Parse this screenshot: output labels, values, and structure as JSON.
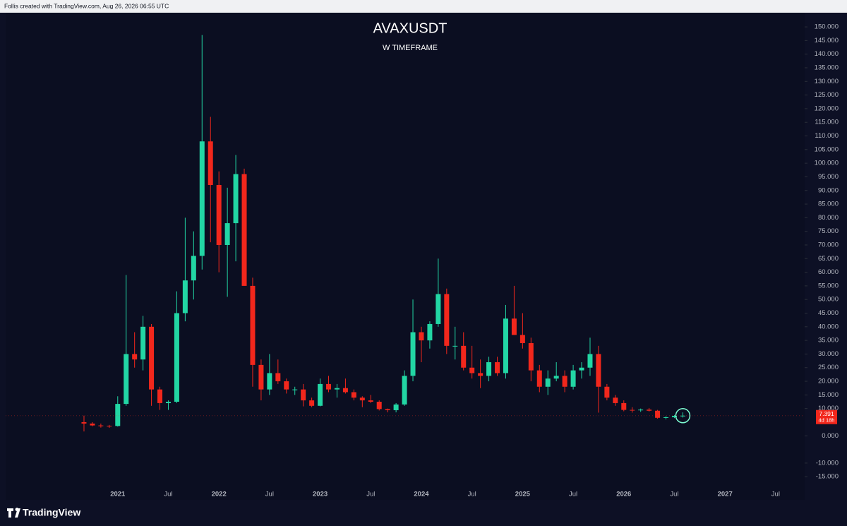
{
  "header": "Follis created with TradingView.com, Aug 26, 2026 06:55 UTC",
  "brand": "TradingView",
  "chart_data": {
    "type": "candlestick",
    "title": "AVAXUSDT",
    "subtitle": "W TIMEFRAME",
    "categories": [
      null,
      null,
      null,
      null,
      "2021",
      null,
      null,
      null,
      null,
      null,
      "Jul",
      null,
      null,
      null,
      null,
      null,
      "2022",
      null,
      null,
      null,
      null,
      null,
      "Jul",
      null,
      null,
      null,
      null,
      null,
      "2023",
      null,
      null,
      null,
      null,
      null,
      "Jul",
      null,
      null,
      null,
      null,
      null,
      "2024",
      null,
      null,
      null,
      null,
      null,
      "Jul",
      null,
      null,
      null,
      null,
      null,
      "2025",
      null,
      null,
      null,
      null,
      null,
      "Jul",
      null,
      null,
      null,
      null,
      null,
      "2026",
      null,
      null,
      null,
      null,
      null,
      "Jul",
      null,
      null,
      null,
      null,
      null,
      "2027",
      null,
      null,
      null,
      null,
      null,
      "Jul",
      null,
      null
    ],
    "open": [
      5,
      4.5,
      3.8,
      3.7,
      3.6,
      11.7,
      30,
      28,
      40,
      17,
      12,
      12.5,
      45,
      57,
      66,
      108,
      92,
      70,
      78,
      96,
      55,
      26,
      17,
      23,
      20,
      17,
      17,
      13,
      11,
      19,
      17,
      17.5,
      16,
      14,
      13,
      12.5,
      9.8,
      9.4,
      11.5,
      22,
      38,
      35,
      41,
      52,
      33,
      33,
      25,
      23,
      22,
      27,
      23,
      43,
      37,
      34,
      24,
      18,
      21,
      22,
      18,
      24,
      25,
      30,
      18,
      14,
      12,
      9.5,
      9.4,
      9.6,
      9.2,
      6.6,
      6.8,
      7.3,
      null,
      null,
      null,
      null,
      null,
      null,
      null,
      null,
      null,
      null,
      null,
      null,
      null
    ],
    "high": [
      7.4,
      5,
      4.5,
      4,
      14.5,
      59,
      38,
      44,
      41,
      18,
      13,
      53,
      80,
      75,
      147,
      117,
      97,
      91,
      103,
      98,
      58,
      28,
      30,
      28,
      21,
      18,
      19,
      14,
      21,
      22,
      19,
      21,
      17,
      14.5,
      15,
      13,
      10,
      12,
      24,
      50,
      40,
      42,
      65,
      54,
      40,
      38,
      33,
      28,
      29,
      29,
      48,
      55,
      45,
      36,
      26,
      24,
      27,
      24,
      26,
      27,
      36,
      33,
      19,
      15,
      13,
      10.5,
      10,
      10.2,
      9.5,
      7.2,
      7.6,
      8.6,
      null,
      null,
      null,
      null,
      null,
      null,
      null,
      null,
      null,
      null,
      null,
      null,
      null
    ],
    "low": [
      1.6,
      3.5,
      3,
      2.9,
      3.4,
      11,
      25,
      24,
      11,
      9.5,
      9.5,
      12,
      42,
      50,
      61,
      71,
      60,
      51,
      64,
      55,
      18,
      13,
      15,
      19,
      15.5,
      15,
      10.8,
      10.5,
      10.8,
      16,
      14,
      15.5,
      13,
      10.5,
      12,
      9.3,
      8.6,
      8.6,
      11,
      20,
      27,
      32,
      40,
      30,
      28,
      24,
      21,
      17.5,
      20,
      22,
      21,
      37,
      32,
      20,
      16,
      15,
      20,
      16,
      17,
      21,
      22,
      8.5,
      13,
      11,
      9,
      8.5,
      8.8,
      8.9,
      6.3,
      6,
      6.5,
      6.7,
      null,
      null,
      null,
      null,
      null,
      null,
      null,
      null,
      null,
      null,
      null,
      null,
      null
    ],
    "close": [
      4.5,
      3.8,
      3.7,
      3.6,
      11.7,
      30,
      28,
      40,
      17,
      12,
      12.5,
      45,
      57,
      66,
      108,
      92,
      70,
      78,
      96,
      55,
      26,
      17,
      23,
      20,
      17,
      17,
      13,
      11,
      19,
      17,
      17.5,
      16,
      14,
      13,
      12.5,
      9.8,
      9.4,
      11.5,
      22,
      38,
      35,
      41,
      52,
      33,
      33,
      25,
      23,
      22,
      27,
      23,
      43,
      37,
      34,
      24,
      18,
      21,
      22,
      18,
      24,
      25,
      30,
      18,
      14,
      12,
      9.5,
      9.4,
      9.6,
      9.2,
      6.6,
      6.8,
      7.3,
      7.391,
      null,
      null,
      null,
      null,
      null,
      null,
      null,
      null,
      null,
      null,
      null,
      null,
      null
    ],
    "up_color": "#22d6a4",
    "down_color": "#f2271c",
    "last_price": 7.391,
    "countdown": "4d 18h",
    "ylim": [
      -23.5,
      155.2
    ],
    "yticks": [
      {
        "value": -15,
        "label": "-15.000"
      },
      {
        "value": -10,
        "label": "-10.000"
      },
      {
        "value": 0,
        "label": "0.000"
      },
      {
        "value": 10,
        "label": "10.000"
      },
      {
        "value": 15,
        "label": "15.000"
      },
      {
        "value": 20,
        "label": "20.000"
      },
      {
        "value": 25,
        "label": "25.000"
      },
      {
        "value": 30,
        "label": "30.000"
      },
      {
        "value": 35,
        "label": "35.000"
      },
      {
        "value": 40,
        "label": "40.000"
      },
      {
        "value": 45,
        "label": "45.000"
      },
      {
        "value": 50,
        "label": "50.000"
      },
      {
        "value": 55,
        "label": "55.000"
      },
      {
        "value": 60,
        "label": "60.000"
      },
      {
        "value": 65,
        "label": "65.000"
      },
      {
        "value": 70,
        "label": "70.000"
      },
      {
        "value": 75,
        "label": "75.000"
      },
      {
        "value": 80,
        "label": "80.000"
      },
      {
        "value": 85,
        "label": "85.000"
      },
      {
        "value": 90,
        "label": "90.000"
      },
      {
        "value": 95,
        "label": "95.000"
      },
      {
        "value": 100,
        "label": "100.000"
      },
      {
        "value": 105,
        "label": "105.000"
      },
      {
        "value": 110,
        "label": "110.000"
      },
      {
        "value": 115,
        "label": "115.000"
      },
      {
        "value": 120,
        "label": "120.000"
      },
      {
        "value": 125,
        "label": "125.000"
      },
      {
        "value": 130,
        "label": "130.000"
      },
      {
        "value": 135,
        "label": "135.000"
      },
      {
        "value": 140,
        "label": "140.000"
      },
      {
        "value": 145,
        "label": "145.000"
      },
      {
        "value": 150,
        "label": "150.000"
      }
    ]
  }
}
